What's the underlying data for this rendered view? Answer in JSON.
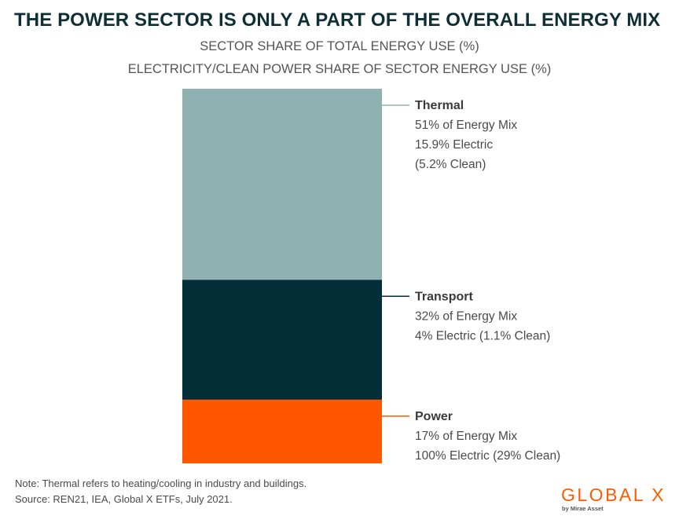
{
  "title": "THE POWER SECTOR IS ONLY A PART OF THE OVERALL ENERGY MIX",
  "subtitle_line1": "SECTOR SHARE OF TOTAL ENERGY USE (%)",
  "subtitle_line2": "ELECTRICITY/CLEAN POWER SHARE OF SECTOR ENERGY USE (%)",
  "chart_data": {
    "type": "bar",
    "stacked": true,
    "unit": "% of total energy use",
    "series": [
      {
        "name": "Thermal",
        "value": 51,
        "color": "#8fb1b1",
        "label_lines": [
          "51% of Energy Mix",
          "15.9% Electric",
          "(5.2% Clean)"
        ]
      },
      {
        "name": "Transport",
        "value": 32,
        "color": "#012e37",
        "label_lines": [
          "32% of Energy Mix",
          "4% Electric (1.1% Clean)"
        ]
      },
      {
        "name": "Power",
        "value": 17,
        "color": "#ff5700",
        "label_lines": [
          "17% of Energy Mix",
          "100% Electric (29% Clean)"
        ]
      }
    ]
  },
  "notes": {
    "line1": "Note: Thermal refers to heating/cooling in industry and buildings.",
    "line2": "Source: REN21, IEA, Global X ETFs, July 2021."
  },
  "logo": {
    "wordmark": "GLOBAL X",
    "tagline": "by Mirae Asset"
  }
}
